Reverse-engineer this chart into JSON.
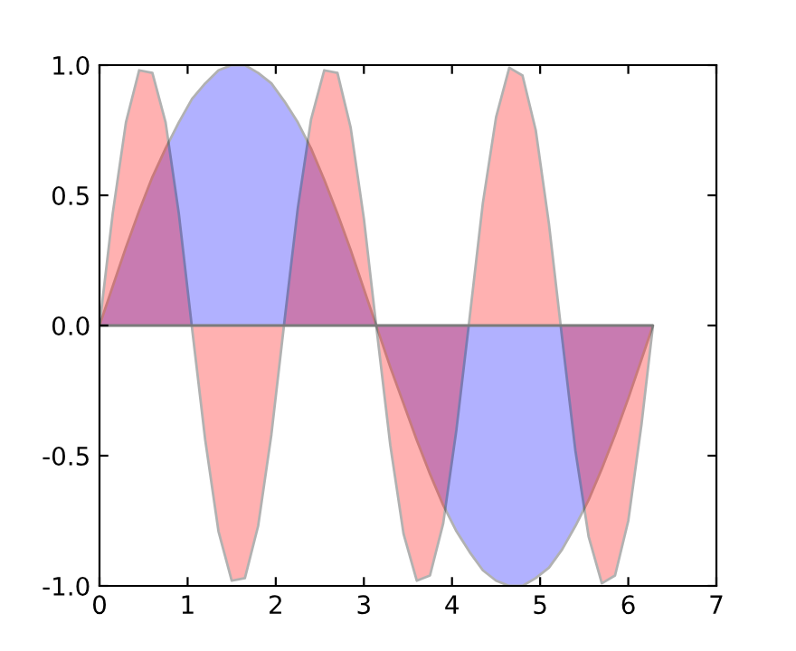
{
  "chart_data": {
    "type": "area",
    "x": [
      0,
      0.15,
      0.3,
      0.45,
      0.6,
      0.75,
      0.9,
      1.05,
      1.2,
      1.35,
      1.5,
      1.65,
      1.8,
      1.95,
      2.1,
      2.25,
      2.4,
      2.55,
      2.7,
      2.85,
      3.0,
      3.15,
      3.3,
      3.45,
      3.6,
      3.75,
      3.9,
      4.05,
      4.2,
      4.35,
      4.5,
      4.65,
      4.8,
      4.95,
      5.1,
      5.25,
      5.4,
      5.55,
      5.7,
      5.85,
      6.0,
      6.15,
      6.28
    ],
    "series": [
      {
        "color": "#0000ff",
        "values": [
          0,
          0.15,
          0.3,
          0.44,
          0.57,
          0.68,
          0.78,
          0.87,
          0.93,
          0.98,
          1.0,
          1.0,
          0.97,
          0.93,
          0.86,
          0.78,
          0.68,
          0.56,
          0.43,
          0.29,
          0.14,
          -0.01,
          -0.16,
          -0.3,
          -0.44,
          -0.57,
          -0.69,
          -0.79,
          -0.87,
          -0.94,
          -0.98,
          -1.0,
          -1.0,
          -0.97,
          -0.93,
          -0.86,
          -0.77,
          -0.67,
          -0.55,
          -0.42,
          -0.28,
          -0.13,
          0
        ]
      },
      {
        "color": "#ff0000",
        "values": [
          0,
          0.43,
          0.78,
          0.98,
          0.97,
          0.78,
          0.43,
          -0.01,
          -0.44,
          -0.79,
          -0.98,
          -0.97,
          -0.77,
          -0.42,
          0.02,
          0.45,
          0.79,
          0.98,
          0.97,
          0.76,
          0.41,
          -0.03,
          -0.46,
          -0.8,
          -0.98,
          -0.96,
          -0.76,
          -0.4,
          0.03,
          0.47,
          0.8,
          0.99,
          0.96,
          0.75,
          0.39,
          -0.05,
          -0.48,
          -0.81,
          -0.99,
          -0.96,
          -0.75,
          -0.38,
          0
        ]
      }
    ],
    "xlim": [
      0,
      7
    ],
    "xticks": [
      0,
      1,
      2,
      3,
      4,
      5,
      6,
      7
    ],
    "ylim": [
      -1,
      1
    ],
    "yticks": [
      {
        "value": -1,
        "label": "-1.0"
      },
      {
        "value": -0.5,
        "label": "-0.5"
      },
      {
        "value": 0,
        "label": "0.0"
      },
      {
        "value": 0.5,
        "label": "0.5"
      },
      {
        "value": 1,
        "label": "1.0"
      }
    ],
    "grid": false
  }
}
